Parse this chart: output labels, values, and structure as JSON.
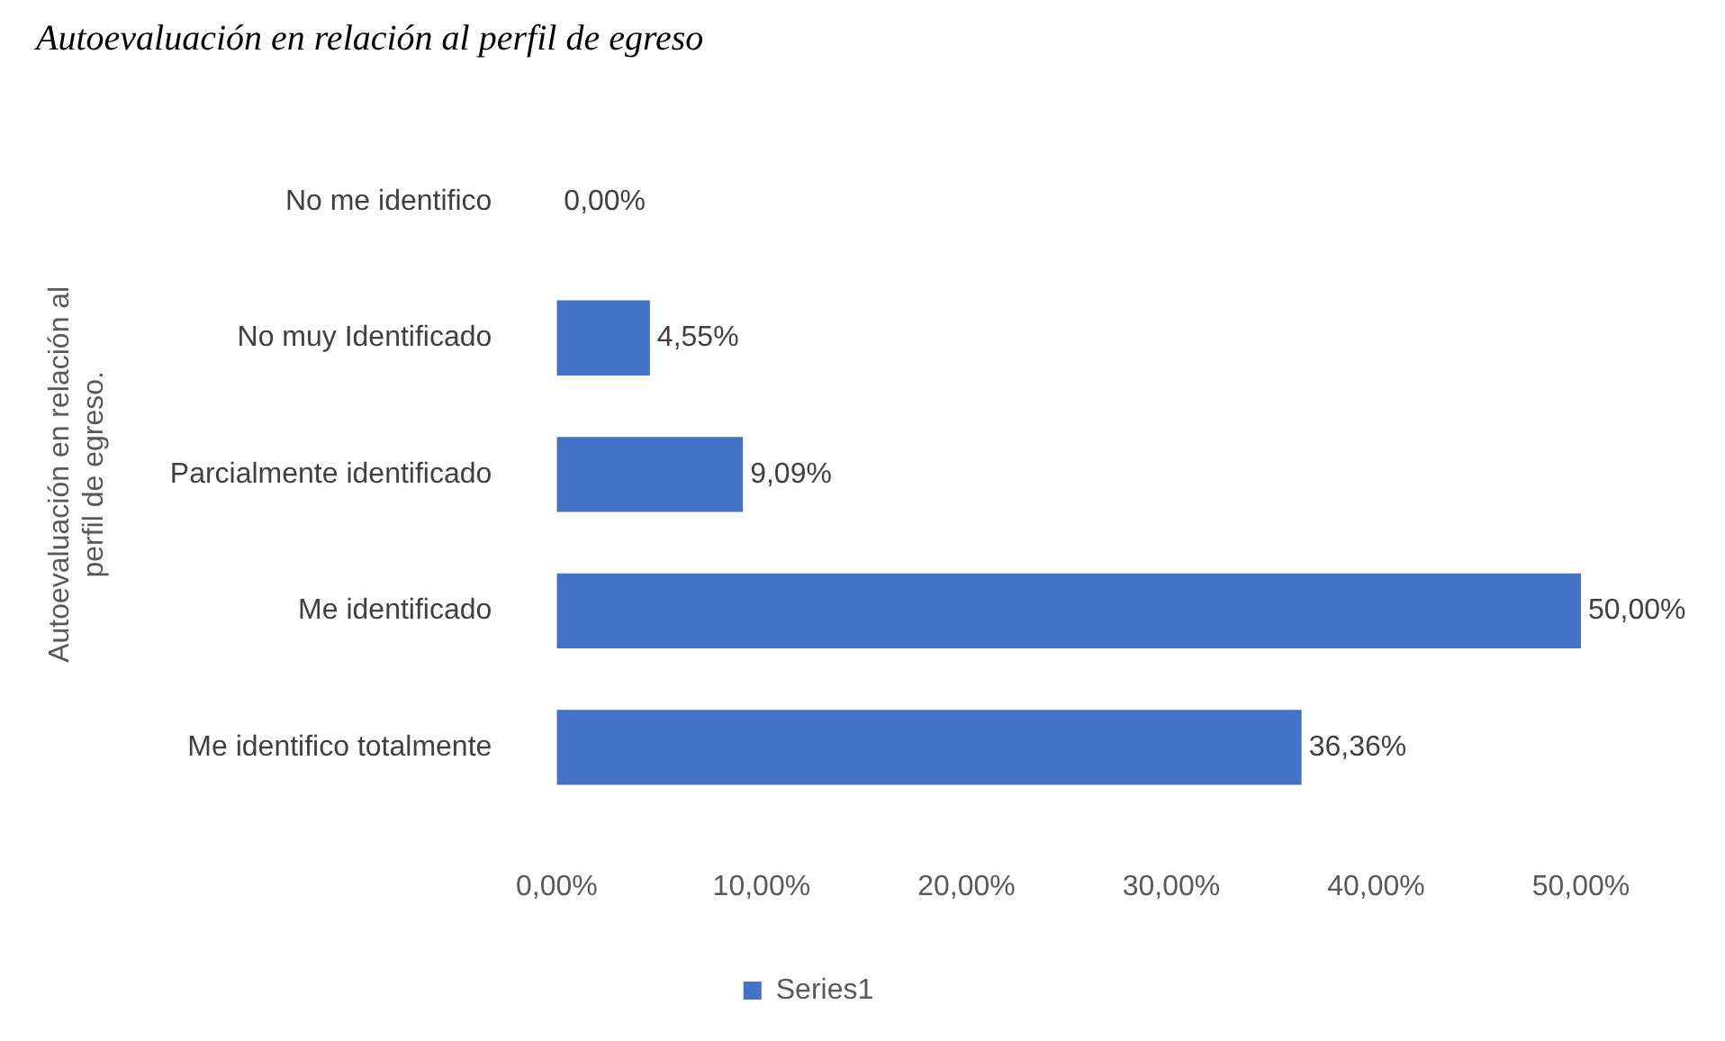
{
  "chart_data": {
    "type": "bar",
    "orientation": "horizontal",
    "title": "Autoevaluación en relación al perfil de egreso",
    "ylabel": "Autoevaluación en relación al perfil de egreso.",
    "categories": [
      "No me identifico",
      "No muy Identificado",
      "Parcialmente identificado",
      "Me identificado",
      "Me identifico totalmente"
    ],
    "series": [
      {
        "name": "Series1",
        "color": "#4472c4",
        "values": [
          0,
          4.55,
          9.09,
          50,
          36.36
        ],
        "value_labels": [
          "0,00%",
          "4,55%",
          "9,09%",
          "50,00%",
          "36,36%"
        ]
      }
    ],
    "xlim": [
      0,
      50
    ],
    "xticks": [
      {
        "value": 0,
        "label": "0,00%"
      },
      {
        "value": 10,
        "label": "10,00%"
      },
      {
        "value": 20,
        "label": "20,00%"
      },
      {
        "value": 30,
        "label": "30,00%"
      },
      {
        "value": 40,
        "label": "40,00%"
      },
      {
        "value": 50,
        "label": "50,00%"
      }
    ],
    "grid": false,
    "legend": "bottom"
  }
}
